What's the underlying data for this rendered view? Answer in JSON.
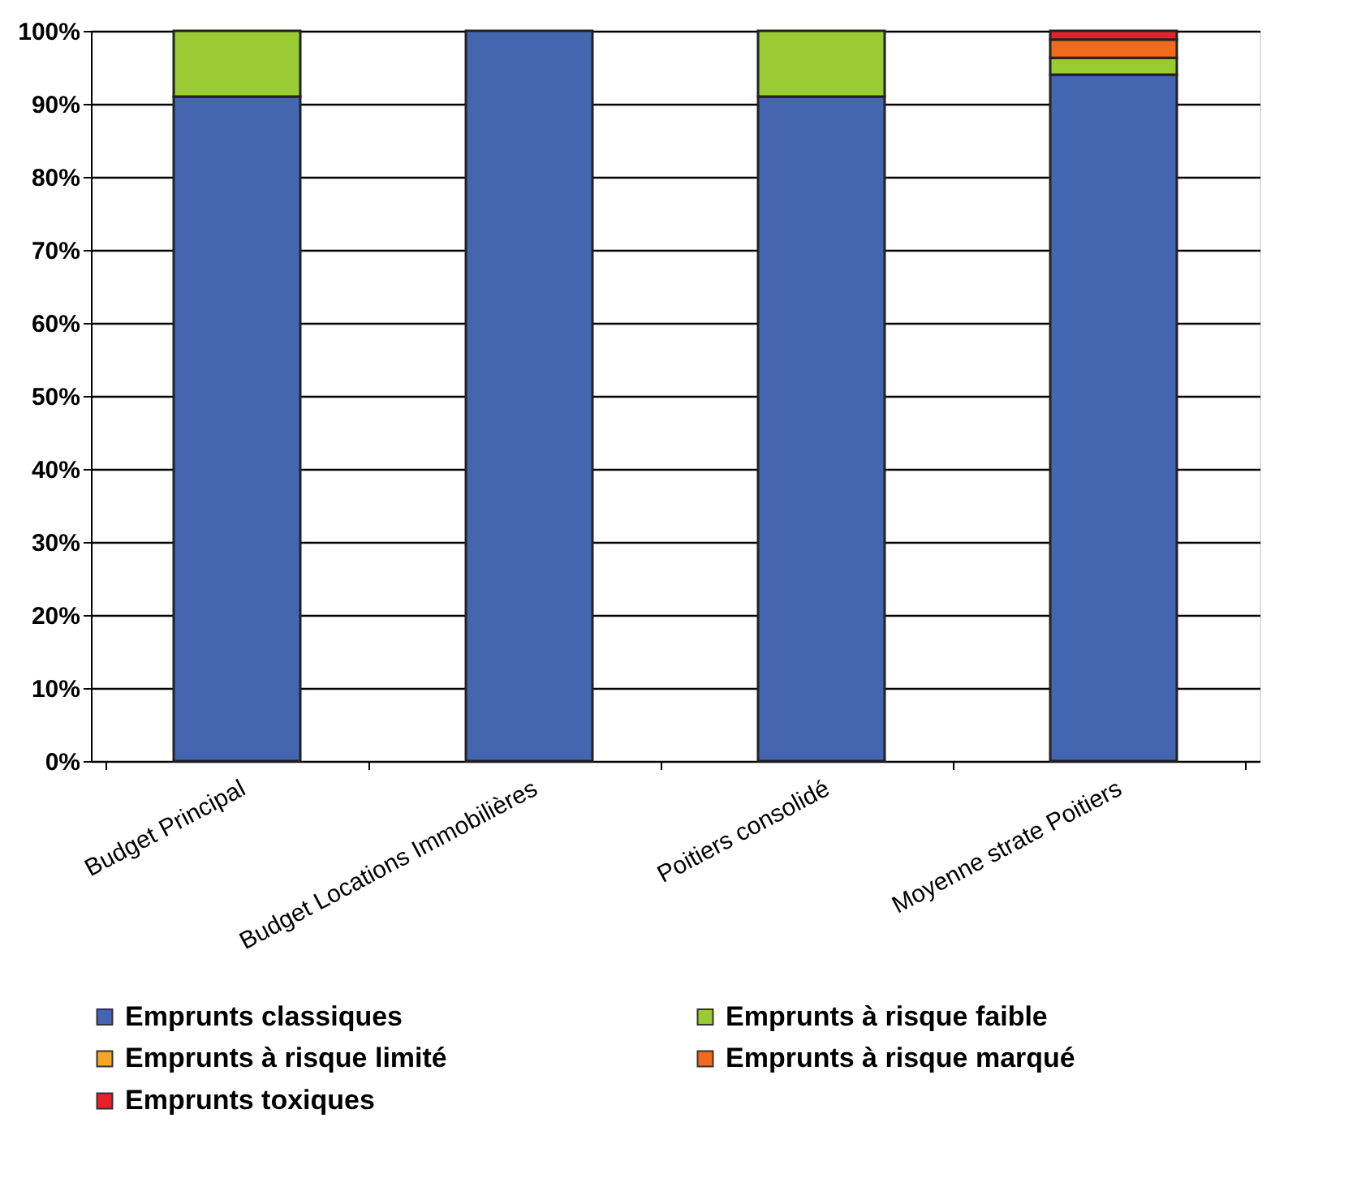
{
  "chart_data": {
    "type": "bar",
    "stacked": true,
    "categories": [
      "Budget Principal",
      "Budget Locations Immobilières",
      "Poitiers consolidé",
      "Moyenne strate Poitiers"
    ],
    "series": [
      {
        "name": "Emprunts classiques",
        "color": "#4466b0",
        "values": [
          91,
          100,
          91,
          94
        ]
      },
      {
        "name": "Emprunts à risque faible",
        "color": "#99cc33",
        "values": [
          9,
          null,
          9,
          2.3
        ]
      },
      {
        "name": "Emprunts à risque limité",
        "color": "#f5a623",
        "values": [
          null,
          null,
          null,
          null
        ]
      },
      {
        "name": "Emprunts à risque marqué",
        "color": "#f26b1d",
        "values": [
          null,
          null,
          null,
          2.5
        ]
      },
      {
        "name": "Emprunts toxiques",
        "color": "#e8202a",
        "values": [
          null,
          null,
          null,
          1.2
        ]
      }
    ],
    "ylim": [
      0,
      100
    ],
    "yticks": [
      {
        "value": 0,
        "label": "0%"
      },
      {
        "value": 10,
        "label": "10%"
      },
      {
        "value": 20,
        "label": "20%"
      },
      {
        "value": 30,
        "label": "30%"
      },
      {
        "value": 40,
        "label": "40%"
      },
      {
        "value": 50,
        "label": "50%"
      },
      {
        "value": 60,
        "label": "60%"
      },
      {
        "value": 70,
        "label": "70%"
      },
      {
        "value": 80,
        "label": "80%"
      },
      {
        "value": 90,
        "label": "90%"
      },
      {
        "value": 100,
        "label": "100%"
      }
    ],
    "grid": "y",
    "legend": "bottom"
  }
}
